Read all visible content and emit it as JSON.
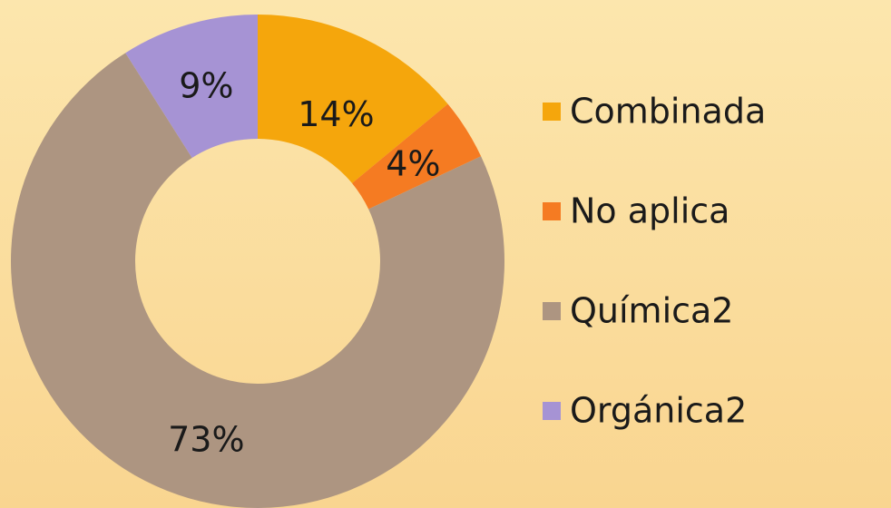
{
  "chart_data": {
    "type": "donut",
    "categories": [
      "Combinada",
      "No aplica",
      "Química2",
      "Orgánica2"
    ],
    "values": [
      14,
      4,
      73,
      9
    ],
    "value_labels": [
      "14%",
      "4%",
      "73%",
      "9%"
    ],
    "colors": [
      "#f5a60c",
      "#f57b22",
      "#ad9581",
      "#a693d4"
    ],
    "legend": "right"
  }
}
